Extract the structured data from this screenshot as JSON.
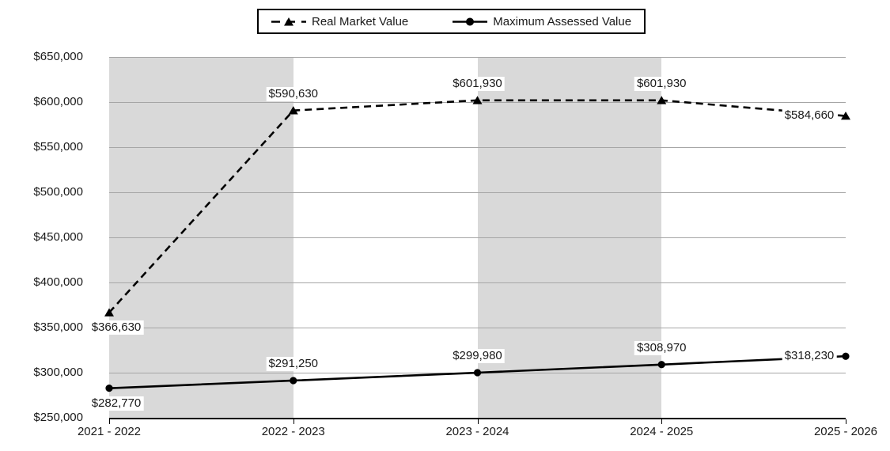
{
  "chart_data": {
    "type": "line",
    "title": "",
    "categories": [
      "2021 - 2022",
      "2022 - 2023",
      "2023 - 2024",
      "2024 - 2025",
      "2025 - 2026"
    ],
    "series": [
      {
        "name": "Real Market Value",
        "line_style": "dashed",
        "marker": "triangle",
        "color": "#000000",
        "values": [
          366630,
          590630,
          601930,
          601930,
          584660
        ],
        "labels": [
          "$366,630",
          "$590,630",
          "$601,930",
          "$601,930",
          "$584,660"
        ],
        "label_placements": [
          "below-left",
          "above",
          "above",
          "above",
          "left"
        ]
      },
      {
        "name": "Maximum Assessed Value",
        "line_style": "solid",
        "marker": "circle",
        "color": "#000000",
        "values": [
          282770,
          291250,
          299980,
          308970,
          318230
        ],
        "labels": [
          "$282,770",
          "$291,250",
          "$299,980",
          "$308,970",
          "$318,230"
        ],
        "label_placements": [
          "below-left",
          "above",
          "above",
          "above",
          "left"
        ]
      }
    ],
    "y_axis": {
      "min": 250000,
      "max": 650000,
      "step": 50000,
      "tick_labels": [
        "$650,000",
        "$600,000",
        "$550,000",
        "$500,000",
        "$450,000",
        "$400,000",
        "$350,000",
        "$300,000",
        "$250,000"
      ]
    },
    "x_axis": {
      "tick_labels": [
        "2021 - 2022",
        "2022 - 2023",
        "2023 - 2024",
        "2024 - 2025",
        "2025 - 2026"
      ]
    },
    "layout": {
      "band_columns": [
        0,
        2
      ],
      "band_color": "#d9d9d9",
      "gridline_color": "#a6a6a6",
      "axis_color": "#000000",
      "legend_position": "top-center",
      "grid": "horizontal"
    }
  }
}
